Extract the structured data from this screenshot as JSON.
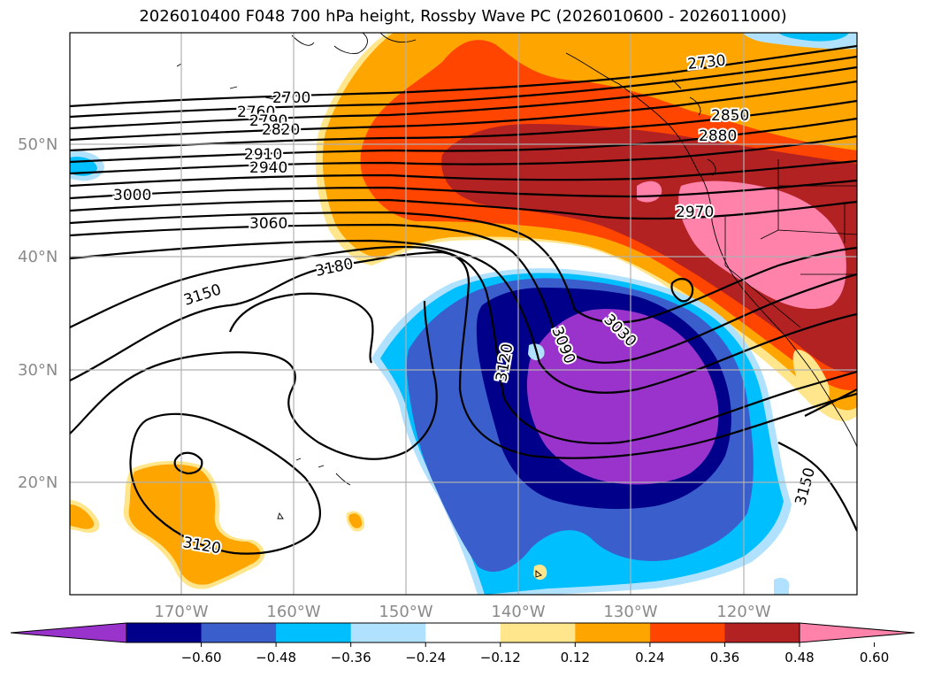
{
  "title": "2026010400 F048 700 hPa height, Rossby Wave PC (2026010600 - 2026011000)",
  "latitude_labels": [
    "50°N",
    "40°N",
    "30°N",
    "20°N"
  ],
  "longitude_labels": [
    "170°W",
    "160°W",
    "150°W",
    "140°W",
    "130°W",
    "120°W"
  ],
  "contour_labels": [
    "2700",
    "2730",
    "2760",
    "2790",
    "2820",
    "2850",
    "2880",
    "2910",
    "2940",
    "2970",
    "3000",
    "3030",
    "3060",
    "3090",
    "3120",
    "3120",
    "3150",
    "3150",
    "3180"
  ],
  "colorbar": {
    "tick_labels": [
      "−0.60",
      "−0.48",
      "−0.36",
      "−0.24",
      "−0.12",
      "0.12",
      "0.24",
      "0.36",
      "0.48",
      "0.60"
    ],
    "colors": [
      "#9933cc",
      "#00008b",
      "#3a5fcd",
      "#00bfff",
      "#b0e2ff",
      "#ffffff",
      "#ffe68c",
      "#ffa500",
      "#ff4500",
      "#b22222",
      "#ff82ab"
    ]
  },
  "colors": {
    "strong_negative": "#9933cc",
    "negative_2": "#00008b",
    "negative_3": "#3a5fcd",
    "negative_4": "#00bfff",
    "negative_5": "#b0e2ff",
    "positive_1": "#ffe68c",
    "positive_2": "#ffa500",
    "positive_3": "#ff4500",
    "positive_4": "#b22222",
    "strong_positive": "#ff82ab",
    "grid": "#b0b0b0"
  }
}
